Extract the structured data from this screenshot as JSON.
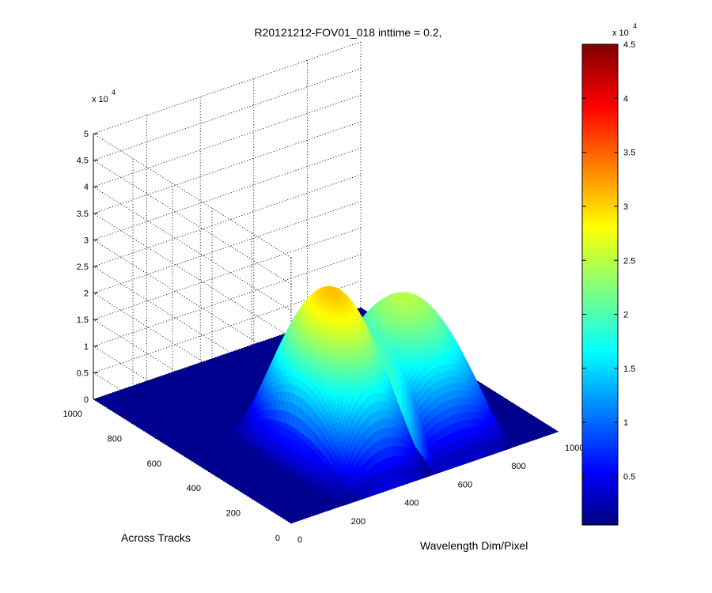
{
  "chart_data": {
    "type": "surface3d",
    "title": "R20121212-FOV01_018 inttime = 0.2,",
    "xlabel": "Wavelength Dim/Pixel",
    "ylabel": "Across Tracks",
    "zlabel": "",
    "x_ticks": [
      "0",
      "200",
      "400",
      "600",
      "800",
      "1000"
    ],
    "y_ticks": [
      "0",
      "200",
      "400",
      "600",
      "800",
      "1000"
    ],
    "z_ticks": [
      "0",
      "0.5",
      "1",
      "1.5",
      "2",
      "2.5",
      "3",
      "3.5",
      "4",
      "4.5",
      "5"
    ],
    "z_exponent": "x 10",
    "z_exponent_power": "4",
    "zlim": [
      0,
      50000
    ],
    "grid": true,
    "colormap": "jet",
    "colorbar": {
      "range": [
        500,
        45000
      ],
      "ticks": [
        "0.5",
        "1",
        "1.5",
        "2",
        "2.5",
        "3",
        "3.5",
        "4",
        "4.5"
      ],
      "exponent": "x 10",
      "exponent_power": "4",
      "placement": "right"
    },
    "surface_peaks": [
      {
        "wavelength_pixel": 210,
        "value": 7000
      },
      {
        "wavelength_pixel": 370,
        "value": 31000
      },
      {
        "wavelength_pixel": 640,
        "value": 25000
      }
    ],
    "background_value": 0
  }
}
